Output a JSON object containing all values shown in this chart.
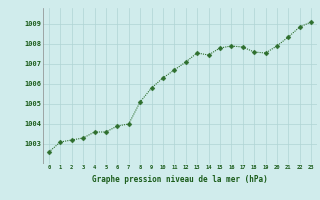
{
  "x": [
    0,
    1,
    2,
    3,
    4,
    5,
    6,
    7,
    8,
    9,
    10,
    11,
    12,
    13,
    14,
    15,
    16,
    17,
    18,
    19,
    20,
    21,
    22,
    23
  ],
  "y": [
    1002.6,
    1003.1,
    1003.2,
    1003.3,
    1003.6,
    1003.6,
    1003.9,
    1004.0,
    1005.1,
    1005.8,
    1006.3,
    1006.7,
    1007.1,
    1007.55,
    1007.45,
    1007.8,
    1007.9,
    1007.85,
    1007.6,
    1007.55,
    1007.9,
    1008.35,
    1008.85,
    1009.1
  ],
  "line_color": "#2d6e2d",
  "marker_color": "#2d6e2d",
  "bg_color": "#d0ecec",
  "grid_color": "#b0d4d4",
  "axis_label_color": "#1a5c1a",
  "tick_label_color": "#1a5c1a",
  "xlabel": "Graphe pression niveau de la mer (hPa)",
  "ylim": [
    1002.0,
    1009.8
  ],
  "xlim": [
    -0.5,
    23.5
  ],
  "yticks": [
    1003,
    1004,
    1005,
    1006,
    1007,
    1008,
    1009
  ],
  "xticks": [
    0,
    1,
    2,
    3,
    4,
    5,
    6,
    7,
    8,
    9,
    10,
    11,
    12,
    13,
    14,
    15,
    16,
    17,
    18,
    19,
    20,
    21,
    22,
    23
  ]
}
